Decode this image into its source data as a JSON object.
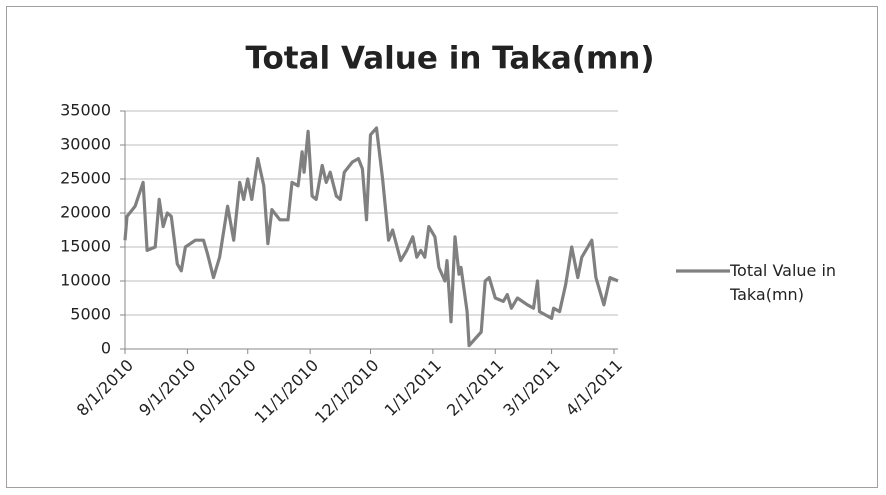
{
  "chart_data": {
    "type": "line",
    "title": "Total Value in Taka(mn)",
    "legend": "right",
    "grid": true,
    "xlim": [
      "8/1/2010",
      "4/3/2011"
    ],
    "xticks": [
      "8/1/2010",
      "9/1/2010",
      "10/1/2010",
      "11/1/2010",
      "12/1/2010",
      "1/1/2011",
      "2/1/2011",
      "3/1/2011",
      "4/1/2011"
    ],
    "ylim": [
      0,
      35000
    ],
    "yticks": [
      0,
      5000,
      10000,
      15000,
      20000,
      25000,
      30000,
      35000
    ],
    "x": [
      "8/1/2010",
      "8/2/2010",
      "8/6/2010",
      "8/10/2010",
      "8/12/2010",
      "8/16/2010",
      "8/18/2010",
      "8/20/2010",
      "8/22/2010",
      "8/24/2010",
      "8/27/2010",
      "8/29/2010",
      "8/31/2010",
      "9/5/2010",
      "9/9/2010",
      "9/11/2010",
      "9/14/2010",
      "9/17/2010",
      "9/21/2010",
      "9/24/2010",
      "9/27/2010",
      "9/29/2010",
      "10/1/2010",
      "10/3/2010",
      "10/6/2010",
      "10/9/2010",
      "10/11/2010",
      "10/13/2010",
      "10/17/2010",
      "10/21/2010",
      "10/23/2010",
      "10/26/2010",
      "10/28/2010",
      "10/29/2010",
      "10/31/2010",
      "11/2/2010",
      "11/4/2010",
      "11/7/2010",
      "11/9/2010",
      "11/11/2010",
      "11/14/2010",
      "11/16/2010",
      "11/18/2010",
      "11/22/2010",
      "11/25/2010",
      "11/27/2010",
      "11/29/2010",
      "12/1/2010",
      "12/4/2010",
      "12/7/2010",
      "12/10/2010",
      "12/12/2010",
      "12/16/2010",
      "12/19/2010",
      "12/22/2010",
      "12/24/2010",
      "12/26/2010",
      "12/28/2010",
      "12/30/2010",
      "1/2/2011",
      "1/4/2011",
      "1/7/2011",
      "1/8/2011",
      "1/10/2011",
      "1/12/2011",
      "1/14/2011",
      "1/15/2011",
      "1/18/2011",
      "1/19/2011",
      "1/22/2011",
      "1/25/2011",
      "1/27/2011",
      "1/29/2011",
      "2/1/2011",
      "2/5/2011",
      "2/7/2011",
      "2/9/2011",
      "2/12/2011",
      "2/17/2011",
      "2/20/2011",
      "2/22/2011",
      "2/23/2011",
      "2/26/2011",
      "3/1/2011",
      "3/2/2011",
      "3/5/2011",
      "3/8/2011",
      "3/11/2011",
      "3/14/2011",
      "3/16/2011",
      "3/21/2011",
      "3/23/2011",
      "3/27/2011",
      "3/30/2011",
      "4/3/2011"
    ],
    "series": [
      {
        "name": "Total Value in Taka(mn)",
        "color": "#808080",
        "values": [
          16000,
          19500,
          21000,
          24500,
          14500,
          15000,
          22000,
          18000,
          20000,
          19500,
          12500,
          11500,
          15000,
          16000,
          16000,
          14000,
          10500,
          13500,
          21000,
          16000,
          24500,
          22000,
          25000,
          22000,
          28000,
          24000,
          15500,
          20500,
          19000,
          19000,
          24500,
          24000,
          29000,
          26000,
          32000,
          22500,
          22000,
          27000,
          24500,
          26000,
          22500,
          22000,
          26000,
          27500,
          28000,
          26500,
          19000,
          31500,
          32500,
          25000,
          16000,
          17500,
          13000,
          14500,
          16500,
          13500,
          14500,
          13500,
          18000,
          16500,
          12000,
          10000,
          13000,
          4000,
          16500,
          11000,
          12000,
          5500,
          500,
          1500,
          2500,
          10000,
          10500,
          7500,
          7000,
          8000,
          6000,
          7500,
          6500,
          6000,
          10000,
          5500,
          5000,
          4500,
          6000,
          5500,
          9500,
          15000,
          10500,
          13500,
          16000,
          10500,
          6500,
          10500,
          10000
        ]
      }
    ]
  }
}
